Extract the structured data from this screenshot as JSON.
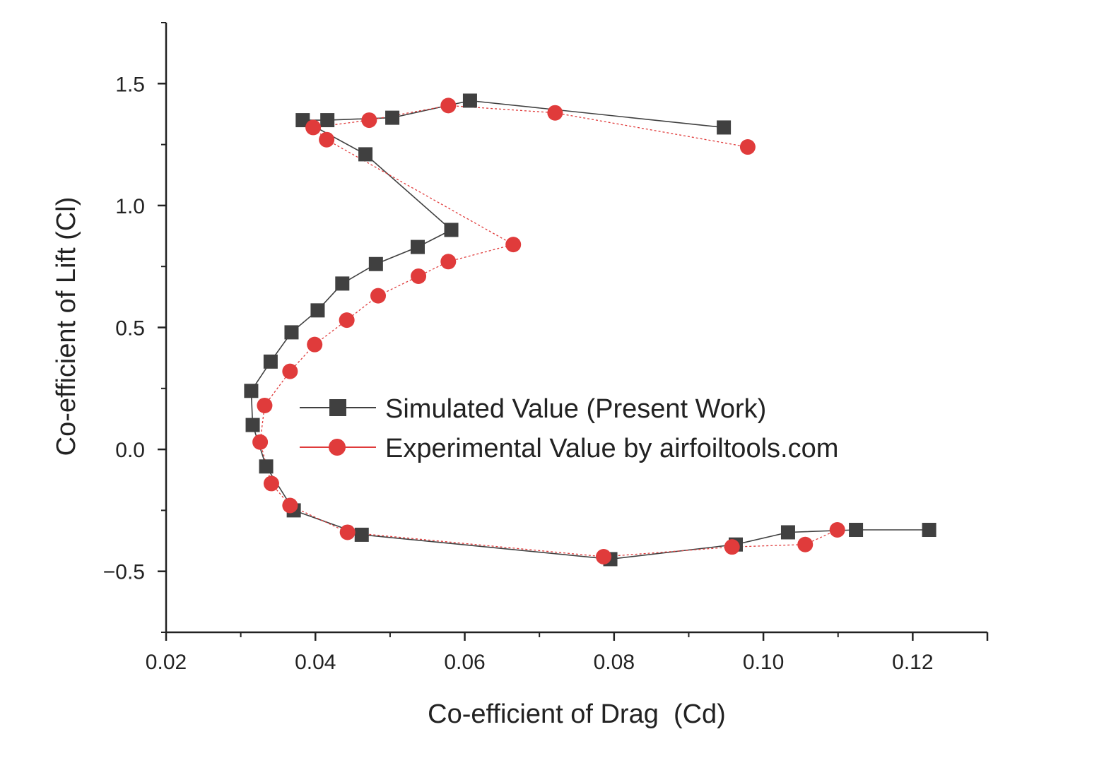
{
  "chart_data": {
    "type": "line",
    "xlabel": "Co-efficient of Drag  (Cd)",
    "ylabel": "Co-efficient of Lift (Cl)",
    "xlim": [
      0.02,
      0.13
    ],
    "ylim": [
      -0.75,
      1.75
    ],
    "xticks": [
      {
        "value": 0.02,
        "label": "0.02"
      },
      {
        "value": 0.04,
        "label": "0.04"
      },
      {
        "value": 0.06,
        "label": "0.06"
      },
      {
        "value": 0.08,
        "label": "0.08"
      },
      {
        "value": 0.1,
        "label": "0.10"
      },
      {
        "value": 0.12,
        "label": "0.12"
      }
    ],
    "yticks": [
      {
        "value": -0.5,
        "label": "−0.5"
      },
      {
        "value": 0.0,
        "label": "0.0"
      },
      {
        "value": 0.5,
        "label": "0.5"
      },
      {
        "value": 1.0,
        "label": "1.0"
      },
      {
        "value": 1.5,
        "label": "1.5"
      }
    ],
    "grid": false,
    "legend_position": "center-right",
    "series": [
      {
        "name": "Simulated Value (Present Work)",
        "color": "#404040",
        "marker": "square",
        "x": [
          0.1222,
          0.1124,
          0.1033,
          0.0963,
          0.0795,
          0.0462,
          0.0371,
          0.0334,
          0.0316,
          0.0314,
          0.034,
          0.0368,
          0.0403,
          0.0436,
          0.0481,
          0.0537,
          0.0582,
          0.0467,
          0.0383,
          0.0416,
          0.0503,
          0.0607,
          0.0947
        ],
        "y": [
          -0.33,
          -0.33,
          -0.34,
          -0.39,
          -0.45,
          -0.35,
          -0.25,
          -0.07,
          0.1,
          0.24,
          0.36,
          0.48,
          0.57,
          0.68,
          0.76,
          0.83,
          0.9,
          1.21,
          1.35,
          1.35,
          1.36,
          1.43,
          1.32
        ]
      },
      {
        "name": "Experimental Value by airfoiltools.com",
        "color": "#e03b3b",
        "marker": "circle",
        "x": [
          0.1099,
          0.1056,
          0.0958,
          0.0786,
          0.0443,
          0.0366,
          0.0341,
          0.0326,
          0.0332,
          0.0366,
          0.0399,
          0.0442,
          0.0484,
          0.0538,
          0.0578,
          0.0665,
          0.0415,
          0.0397,
          0.0472,
          0.0578,
          0.0721,
          0.0979
        ],
        "y": [
          -0.33,
          -0.39,
          -0.4,
          -0.44,
          -0.34,
          -0.23,
          -0.14,
          0.03,
          0.18,
          0.32,
          0.43,
          0.53,
          0.63,
          0.71,
          0.77,
          0.84,
          1.27,
          1.32,
          1.35,
          1.41,
          1.38,
          1.24
        ]
      }
    ]
  }
}
